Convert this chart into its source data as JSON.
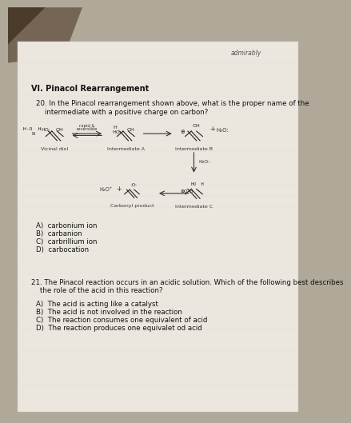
{
  "bg_top_color": "#7a7060",
  "bg_bottom_color": "#c8c4bc",
  "paper_color": "#e8e4dc",
  "watermark": "admirably",
  "section_title": "VI. Pinacol Rearrangement",
  "q20_line1": "20. In the Pinacol rearrangement shown above, what is the proper name of the",
  "q20_line2": "    intermediate with a positive charge on carbon?",
  "q20_answers": [
    "A)  carbonium ion",
    "B)  carbanion",
    "C)  carbrillium ion",
    "D)  carbocation"
  ],
  "q21_line1": "21. The Pinacol reaction occurs in an acidic solution. Which of the following best describes",
  "q21_line2": "    the role of the acid in this reaction?",
  "q21_answers": [
    "A)  The acid is acting like a catalyst",
    "B)  The acid is not involved in the reaction",
    "C)  The reaction consumes one equivalent of acid",
    "D)  The reaction produces one equivalet od acid"
  ],
  "rxn_label_vicdiol": "Vicinal diol",
  "rxn_label_intA": "Intermediate A",
  "rxn_label_intB": "Intermediate B",
  "rxn_label_intC": "Intermediate C",
  "rxn_label_carbonyl": "Carbonyl product",
  "rxn_arrow_label1": "rapid &",
  "rxn_arrow_label2": "reversible",
  "h2o_colon": "H₂O:",
  "h2o_plus": "H₂O⁺"
}
